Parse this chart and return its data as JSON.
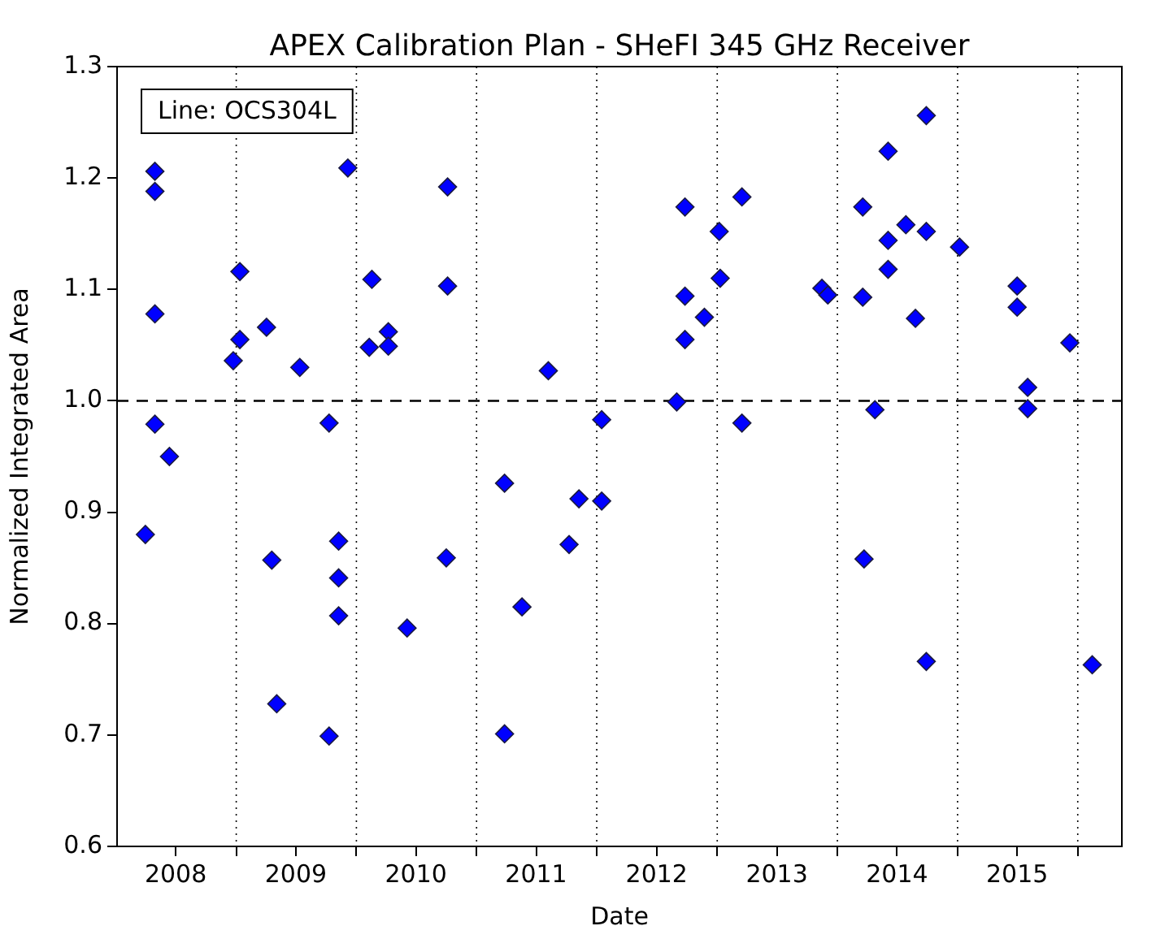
{
  "chart_data": {
    "type": "scatter",
    "title": "APEX Calibration Plan - SHeFI 345 GHz Receiver",
    "xlabel": "Date",
    "ylabel": "Normalized Integrated Area",
    "annotations": [
      "Line: OCS304L"
    ],
    "series": [
      {
        "color": "#0000ff",
        "x": [
          "2008-03-31",
          "2008-04-29",
          "2008-04-29",
          "2008-04-29",
          "2008-04-29",
          "2008-06-12",
          "2008-12-23",
          "2009-01-12",
          "2009-01-12",
          "2009-04-03",
          "2009-04-19",
          "2009-05-04",
          "2009-07-13",
          "2009-10-10",
          "2009-10-10",
          "2009-11-08",
          "2009-11-08",
          "2009-11-08",
          "2009-12-06",
          "2010-02-09",
          "2010-02-17",
          "2010-04-08",
          "2010-04-08",
          "2010-06-04",
          "2010-10-01",
          "2010-10-05",
          "2010-10-05",
          "2011-03-27",
          "2011-03-27",
          "2011-05-19",
          "2011-08-07",
          "2011-10-09",
          "2011-11-08",
          "2012-01-16",
          "2012-01-16",
          "2012-08-31",
          "2012-09-25",
          "2012-09-25",
          "2012-09-25",
          "2012-11-23",
          "2013-01-07",
          "2013-01-10",
          "2013-03-17",
          "2013-03-17",
          "2013-11-15",
          "2013-12-03",
          "2014-03-19",
          "2014-03-19",
          "2014-03-23",
          "2014-04-25",
          "2014-06-04",
          "2014-06-04",
          "2014-06-04",
          "2014-07-28",
          "2014-08-26",
          "2014-09-28",
          "2014-09-28",
          "2014-09-28",
          "2015-01-07",
          "2015-07-01",
          "2015-07-01",
          "2015-08-02",
          "2015-08-02",
          "2015-12-08",
          "2016-02-14"
        ],
        "values": [
          0.88,
          1.206,
          1.188,
          1.078,
          0.979,
          0.95,
          1.036,
          1.116,
          1.055,
          1.066,
          0.857,
          0.728,
          1.03,
          0.98,
          0.699,
          0.874,
          0.841,
          0.807,
          1.209,
          1.048,
          1.109,
          1.062,
          1.049,
          0.796,
          0.859,
          1.192,
          1.103,
          0.926,
          0.701,
          0.815,
          1.027,
          0.871,
          0.912,
          0.983,
          0.91,
          0.999,
          1.174,
          1.094,
          1.055,
          1.075,
          1.152,
          1.11,
          1.183,
          0.98,
          1.101,
          1.095,
          1.174,
          1.093,
          0.858,
          0.992,
          1.224,
          1.144,
          1.118,
          1.158,
          1.074,
          1.256,
          1.152,
          0.766,
          1.138,
          1.103,
          1.084,
          1.012,
          0.993,
          1.052,
          0.763
        ]
      }
    ],
    "xlim": [
      "2008-01-05",
      "2016-05-14"
    ],
    "xticks": [
      {
        "value": "2008-07-01",
        "label": "2008"
      },
      {
        "value": "2009-01-01",
        "label": null
      },
      {
        "value": "2009-07-01",
        "label": "2009"
      },
      {
        "value": "2010-01-01",
        "label": null
      },
      {
        "value": "2010-07-01",
        "label": "2010"
      },
      {
        "value": "2011-01-01",
        "label": null
      },
      {
        "value": "2011-07-01",
        "label": "2011"
      },
      {
        "value": "2012-01-01",
        "label": null
      },
      {
        "value": "2012-07-01",
        "label": "2012"
      },
      {
        "value": "2013-01-01",
        "label": null
      },
      {
        "value": "2013-07-01",
        "label": "2013"
      },
      {
        "value": "2014-01-01",
        "label": null
      },
      {
        "value": "2014-07-01",
        "label": "2014"
      },
      {
        "value": "2015-01-01",
        "label": null
      },
      {
        "value": "2015-07-01",
        "label": "2015"
      },
      {
        "value": "2016-01-01",
        "label": null
      }
    ],
    "ylim": [
      0.6,
      1.3
    ],
    "yticks": [
      0.6,
      0.7,
      0.8,
      0.9,
      {
        "value": 1.0,
        "label": "1.0"
      },
      1.1,
      1.2,
      1.3
    ],
    "ref_lines": [
      {
        "axis": "y",
        "value": 1.0,
        "color": "#000000",
        "line_style": "dashed"
      }
    ],
    "grid": "x",
    "legend": false,
    "marker": "diamond"
  }
}
